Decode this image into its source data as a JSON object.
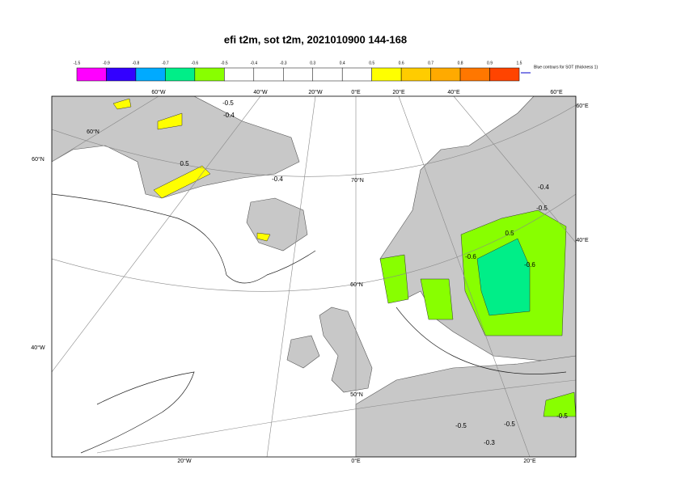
{
  "title": "efi t2m, sot t2m, 2021010900 144-168",
  "colorbar": {
    "labels": [
      -1.5,
      -0.9,
      -0.8,
      -0.7,
      -0.6,
      -0.5,
      -0.4,
      -0.3,
      0.3,
      0.4,
      0.5,
      0.6,
      0.7,
      0.8,
      0.9,
      1.5
    ],
    "colors": [
      "#ff00ff",
      "#3300ff",
      "#00aaff",
      "#00ee88",
      "#88ff00",
      "#ffffff",
      "#ffffff",
      "#ffffff",
      "#ffffff",
      "#ffffff",
      "#ffff00",
      "#ffcc00",
      "#ffaa00",
      "#ff7700",
      "#ff4400",
      "#ff0000"
    ],
    "note": "Blue contours for SOT (thickness 1)"
  },
  "map_labels": [
    "60°W",
    "40°W",
    "20°W",
    "0°E",
    "20°E",
    "40°E",
    "60°E",
    "60°E",
    "40°E",
    "60°N",
    "40°W",
    "20°W",
    "0°E",
    "20°E",
    "70°N",
    "60°N",
    "50°N",
    "60°N"
  ],
  "contour_labels": [
    "-0.5",
    "-0.4",
    "0.5",
    "-0.4",
    "-0.4",
    "-0.5",
    "-0.6",
    "-0.6",
    "0.5",
    "-0.5",
    "-0.5",
    "-0.3",
    "-0.5"
  ]
}
